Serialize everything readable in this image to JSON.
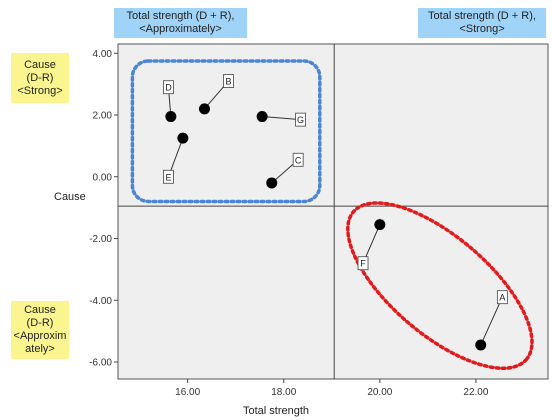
{
  "annotations": {
    "top_left": "Total strength (D + R),\n<Approximately>",
    "top_right": "Total strength (D + R),\n<Strong>",
    "left_top": "Cause\n(D-R)\n<Strong>",
    "left_bottom": "Cause\n(D-R)\n<Approxim\nately>"
  },
  "colors": {
    "blue_group": "#4a86d4",
    "red_group": "#e31a1c",
    "plot_bg": "#efefef",
    "point": "#000000"
  },
  "chart_data": {
    "type": "scatter",
    "title": "",
    "xlabel": "Total strength",
    "ylabel": "Cause",
    "xlim": [
      14.55,
      23.5
    ],
    "ylim": [
      -6.55,
      4.3
    ],
    "xticks": [
      16.0,
      18.0,
      20.0,
      22.0
    ],
    "xtick_labels": [
      "16.00",
      "18.00",
      "20.00",
      "22.00"
    ],
    "yticks": [
      4.0,
      2.0,
      0.0,
      -2.0,
      -4.0,
      -6.0
    ],
    "ytick_labels": [
      "4.00",
      "2.00",
      "0.00",
      "-2.00",
      "-4.00",
      "-6.00"
    ],
    "reference_lines": {
      "x": 19.05,
      "y": -0.95
    },
    "points": [
      {
        "label": "A",
        "x": 22.1,
        "y": -5.45,
        "lx": 22.55,
        "ly": -3.9
      },
      {
        "label": "B",
        "x": 16.35,
        "y": 2.2,
        "lx": 16.85,
        "ly": 3.1
      },
      {
        "label": "C",
        "x": 17.75,
        "y": -0.2,
        "lx": 18.3,
        "ly": 0.55
      },
      {
        "label": "D",
        "x": 15.65,
        "y": 1.95,
        "lx": 15.6,
        "ly": 2.9
      },
      {
        "label": "E",
        "x": 15.9,
        "y": 1.25,
        "lx": 15.6,
        "ly": 0.0
      },
      {
        "label": "F",
        "x": 20.0,
        "y": -1.55,
        "lx": 19.65,
        "ly": -2.8
      },
      {
        "label": "G",
        "x": 17.55,
        "y": 1.95,
        "lx": 18.35,
        "ly": 1.85
      }
    ],
    "groups": [
      {
        "name": "",
        "shape": "rounded-rect",
        "color": "blue",
        "x": [
          14.85,
          18.75
        ],
        "y": [
          -0.8,
          3.75
        ]
      },
      {
        "name": "",
        "shape": "ellipse",
        "color": "red",
        "x": [
          19.05,
          23.45
        ],
        "y": [
          -6.45,
          -0.6
        ]
      }
    ],
    "grid": false
  }
}
